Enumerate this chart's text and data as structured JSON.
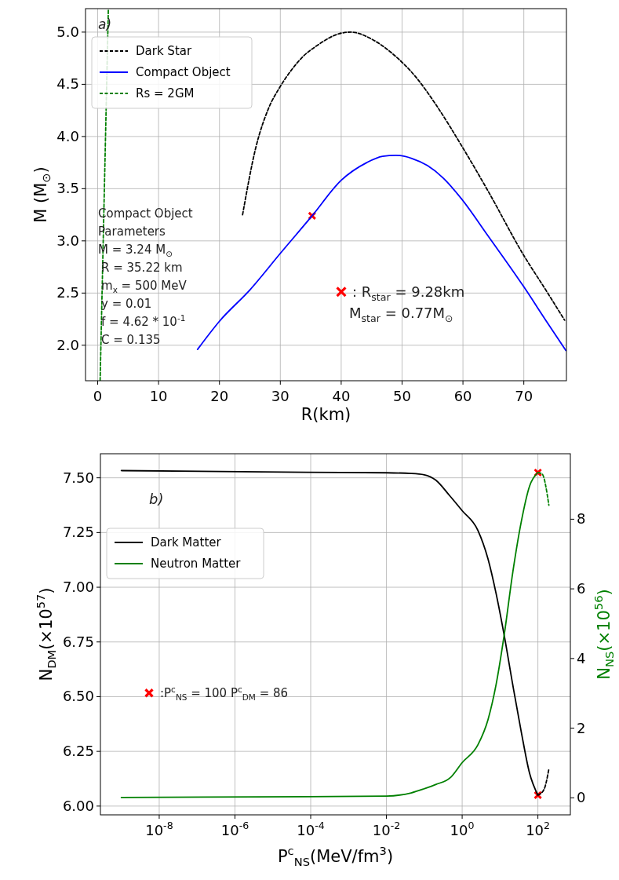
{
  "chart_data": [
    {
      "type": "line",
      "xlabel": "R(km)",
      "ylabel": "M (M$_{⊙}$)",
      "xlim": [
        -2,
        77
      ],
      "ylim": [
        1.66,
        5.225
      ],
      "xticks": [
        0,
        10,
        20,
        30,
        40,
        50,
        60,
        70
      ],
      "yticks": [
        {
          "value": 2,
          "label": "2.0"
        },
        {
          "value": 2.5,
          "label": "2.5"
        },
        {
          "value": 3,
          "label": "3.0"
        },
        {
          "value": 3.5,
          "label": "3.5"
        },
        {
          "value": 4,
          "label": "4.0"
        },
        {
          "value": 4.5,
          "label": "4.5"
        },
        {
          "value": 5,
          "label": "5.0"
        }
      ],
      "grid": true,
      "legend": "top left",
      "annotations": [
        "a)",
        "Compact Object",
        "Parameters",
        "M = 3.24 M$_{⊙}$",
        "R = 35.22 km",
        "m$_{x}$ = 500 MeV",
        "y = 0.01",
        "f = 4.62 * 10$^{-1}$",
        "C = 0.135",
        ": R$_{star}$ = 9.28km",
        "M$_{star}$ = 0.77M$_{⊙}$"
      ],
      "series": [
        {
          "name": "Dark Star",
          "color": "#000000",
          "line_style": "dashed",
          "x": [
            23.8,
            26,
            28,
            30,
            32,
            33.8,
            36,
            40,
            41.6,
            45.1,
            48.5,
            52.4,
            55.5,
            60,
            64.1,
            70,
            73.6,
            76.7
          ],
          "values": [
            3.25,
            3.9,
            4.26,
            4.48,
            4.65,
            4.77,
            4.87,
            4.99,
            5.0,
            4.93,
            4.79,
            4.56,
            4.31,
            3.89,
            3.48,
            2.86,
            2.53,
            2.24
          ]
        },
        {
          "name": "Compact Object",
          "color": "#0000ff",
          "line_style": "solid",
          "x": [
            16.4,
            20,
            25,
            30,
            35.22,
            40,
            44.2,
            46.8,
            49,
            51.6,
            54.2,
            56.8,
            59.8,
            64.1,
            70,
            73.6,
            76.9
          ],
          "values": [
            1.96,
            2.23,
            2.53,
            2.88,
            3.24,
            3.58,
            3.75,
            3.81,
            3.82,
            3.79,
            3.72,
            3.6,
            3.4,
            3.05,
            2.56,
            2.24,
            1.95
          ]
        },
        {
          "name": "Rs = 2GM",
          "color": "#008000",
          "line_style": "dashed",
          "x": [
            0.4,
            1.75
          ],
          "values": [
            1.66,
            5.22
          ]
        },
        {
          "type": "scatter",
          "color": "#ff0000",
          "marker": "cross",
          "x": [
            35.22
          ],
          "values": [
            3.24
          ]
        }
      ]
    },
    {
      "type": "line",
      "xlabel": "P$^{c}$$_{NS}$(MeV/fm$^{3}$)",
      "ylabel": "N$_{DM}$(×10$^{57}$)",
      "y2label": "N$_{NS}$(×10$^{56}$)",
      "log": "x",
      "xlim": [
        2.8e-10,
        720
      ],
      "ylim": [
        5.96,
        7.61
      ],
      "y2lim": [
        -0.49,
        9.88
      ],
      "xticks": [
        {
          "value": 1e-08,
          "label": "10$^{-8}$"
        },
        {
          "value": 1e-06,
          "label": "10$^{-6}$"
        },
        {
          "value": 0.0001,
          "label": "10$^{-4}$"
        },
        {
          "value": 0.01,
          "label": "10$^{-2}$"
        },
        {
          "value": 1,
          "label": "10$^{0}$"
        },
        {
          "value": 100,
          "label": "10$^{2}$"
        }
      ],
      "yticks": [
        {
          "value": 6,
          "label": "6.00"
        },
        {
          "value": 6.25,
          "label": "6.25"
        },
        {
          "value": 6.5,
          "label": "6.50"
        },
        {
          "value": 6.75,
          "label": "6.75"
        },
        {
          "value": 7,
          "label": "7.00"
        },
        {
          "value": 7.25,
          "label": "7.25"
        },
        {
          "value": 7.5,
          "label": "7.50"
        }
      ],
      "y2ticks": [
        0,
        2,
        4,
        6,
        8
      ],
      "grid": true,
      "legend": "top left",
      "annotations": [
        "b)",
        ":P$^{c}$$_{NS}$ = 100 P$^{c}$$_{DM}$ = 86"
      ],
      "series": [
        {
          "name": "Dark Matter",
          "color": "#000000",
          "line_style": "solid",
          "x": [
            1e-09,
            7.6e-05,
            0.01,
            0.045,
            0.1,
            0.2,
            0.46,
            1,
            2.6,
            4.8,
            7.9,
            12.9,
            21.9,
            36.3,
            60.3,
            100
          ],
          "values": [
            7.533,
            7.525,
            7.523,
            7.52,
            7.514,
            7.49,
            7.42,
            7.35,
            7.26,
            7.13,
            6.97,
            6.78,
            6.55,
            6.34,
            6.15,
            6.05
          ]
        },
        {
          "name": "Neutron Matter",
          "color": "#008000",
          "line_style": "solid",
          "axis": "y2",
          "x": [
            1e-09,
            7.6e-05,
            0.01,
            0.045,
            0.1,
            0.2,
            0.5,
            1,
            2.6,
            4.8,
            7.9,
            12.9,
            21.9,
            36.3,
            60.3,
            100
          ],
          "values": [
            0.01,
            0.03,
            0.05,
            0.14,
            0.26,
            0.38,
            0.59,
            1.01,
            1.52,
            2.24,
            3.26,
            4.68,
            6.5,
            7.92,
            8.95,
            9.34
          ]
        },
        {
          "color": "#000000",
          "line_style": "dashed",
          "x": [
            100,
            145,
            195
          ],
          "values": [
            6.05,
            6.076,
            6.17
          ]
        },
        {
          "color": "#008000",
          "line_style": "dashed",
          "axis": "y2",
          "x": [
            100,
            129,
            195
          ],
          "values": [
            9.34,
            9.3,
            8.4
          ]
        },
        {
          "type": "scatter",
          "color": "#ff0000",
          "marker": "cross",
          "x": [
            100
          ],
          "values": [
            6.05
          ]
        },
        {
          "type": "scatter",
          "color": "#ff0000",
          "marker": "cross",
          "axis": "y2",
          "x": [
            100
          ],
          "values": [
            9.34
          ]
        }
      ]
    }
  ]
}
